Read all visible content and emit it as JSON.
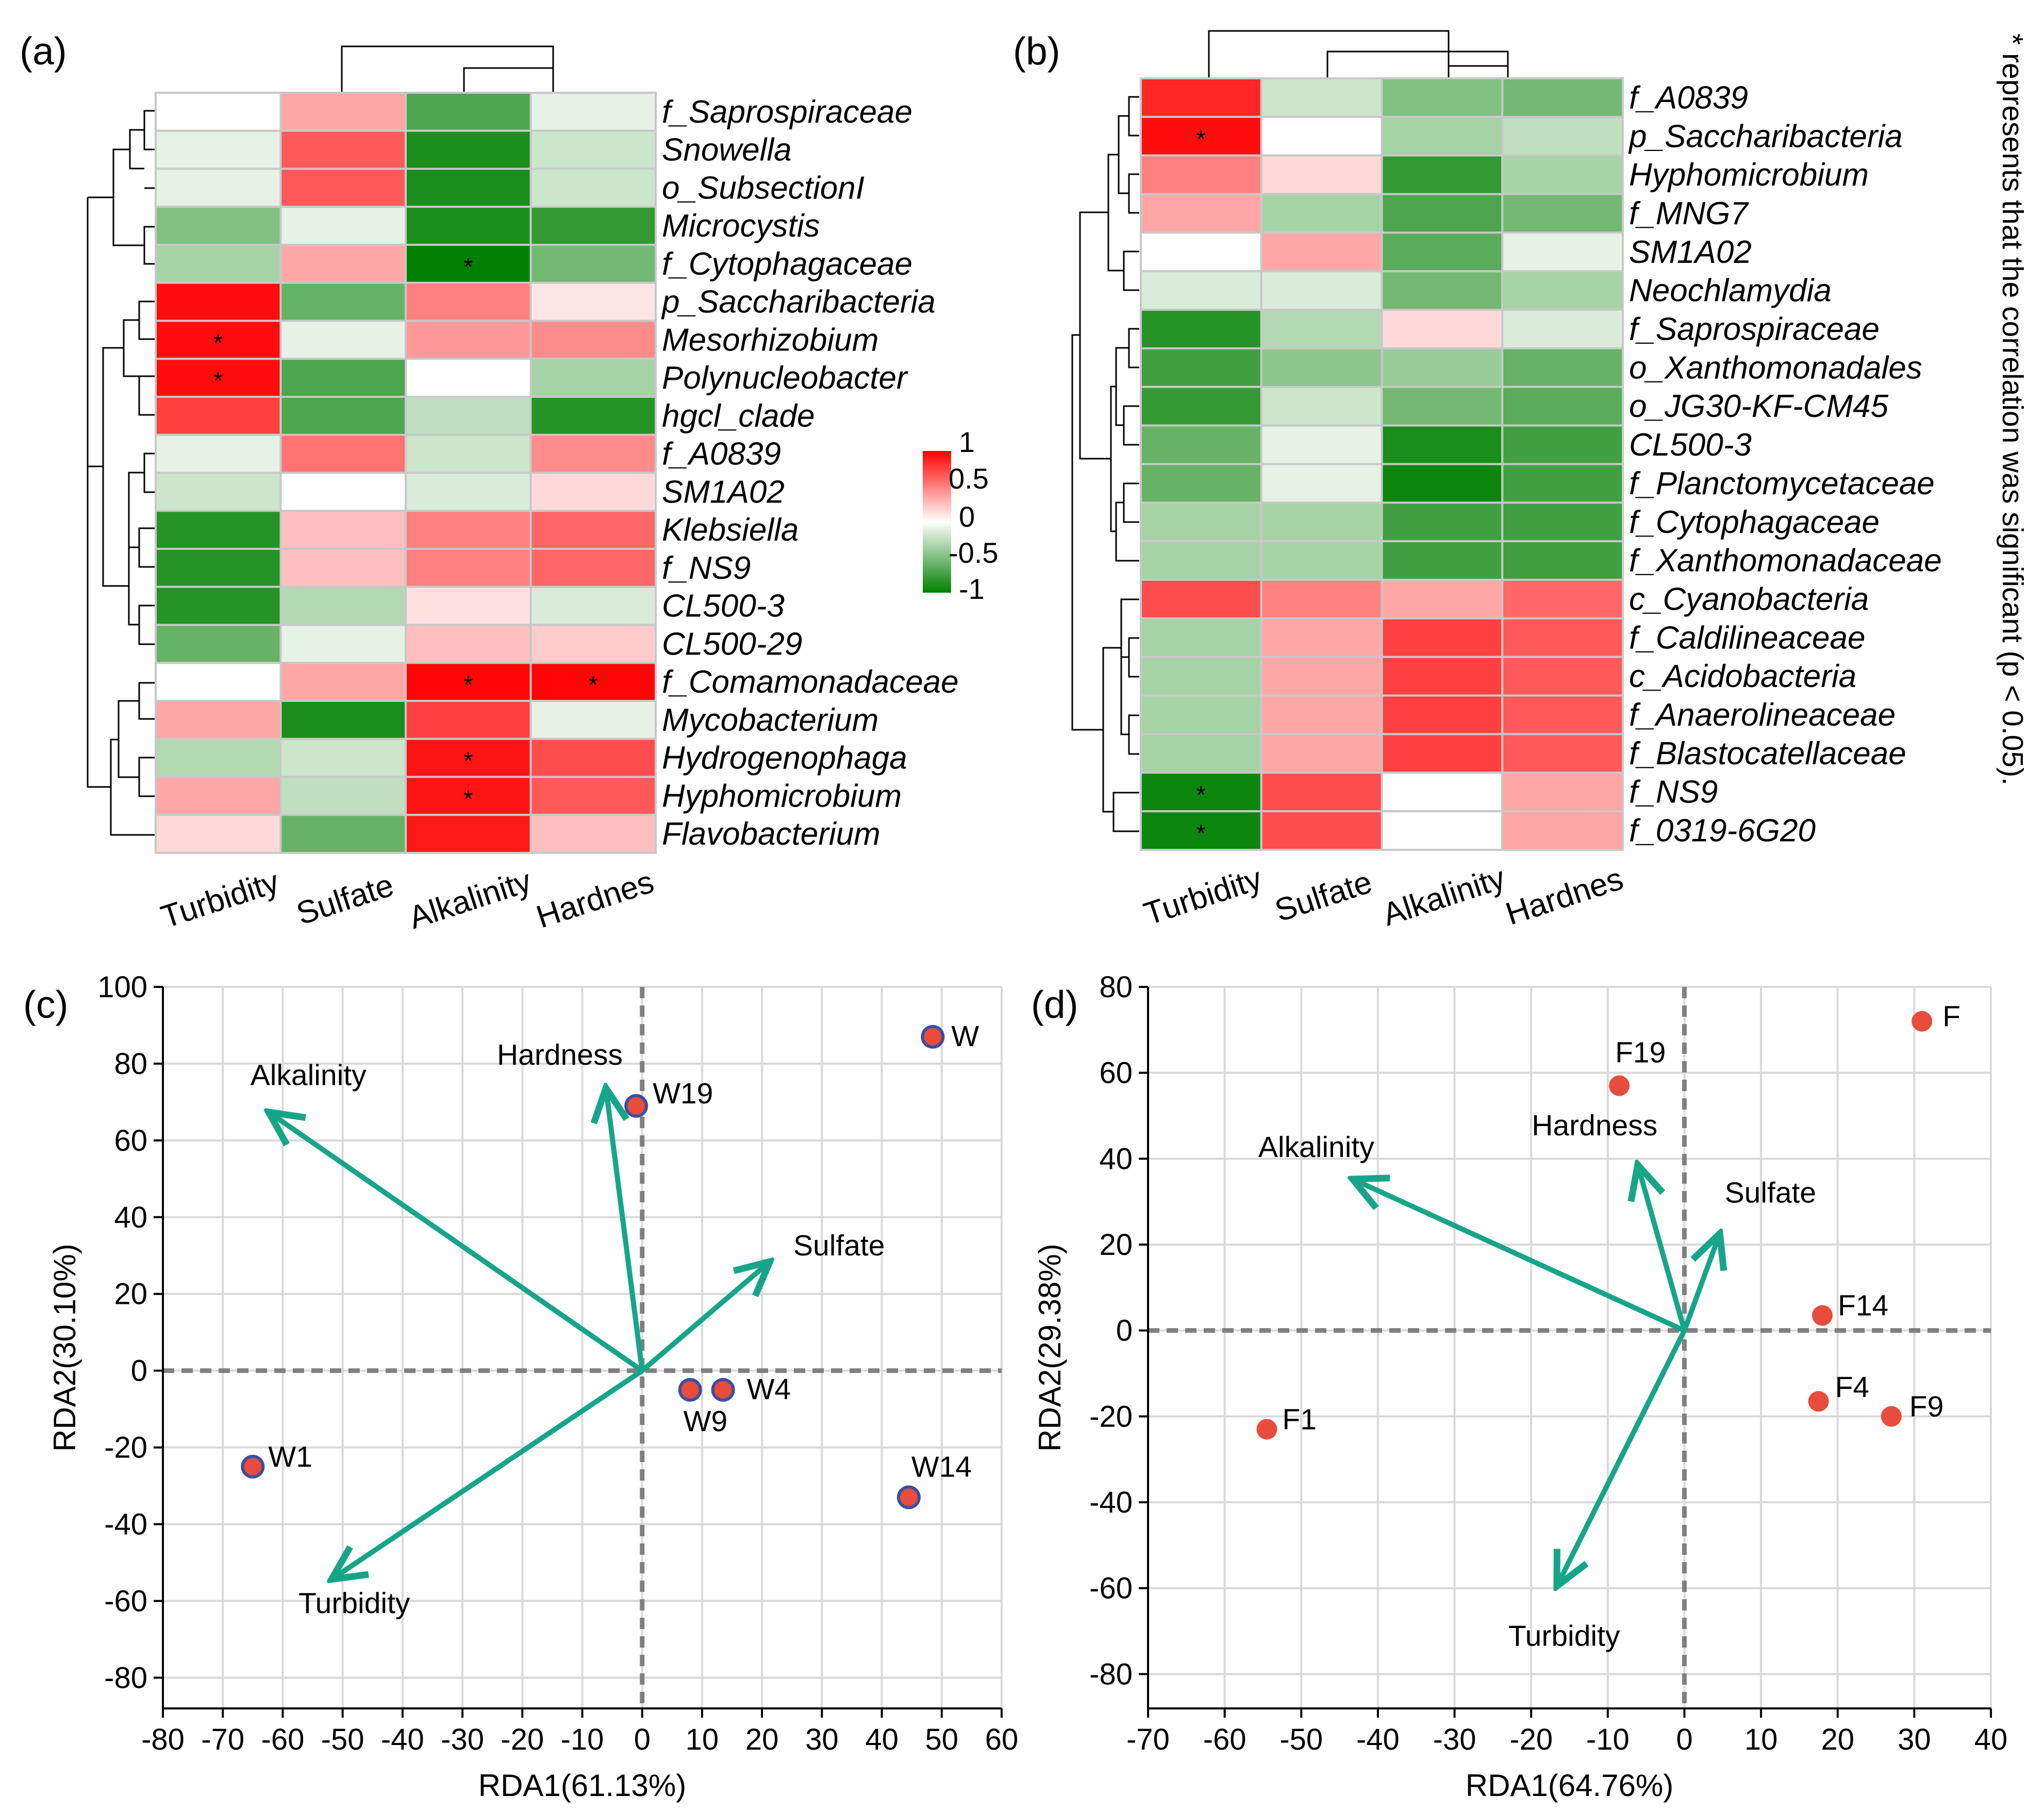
{
  "figure": {
    "panel_labels": [
      "(a)",
      "(b)",
      "(c)",
      "(d)"
    ],
    "significance_note": "* represents that the correlation was significant (p < 0.05).",
    "colorbar_ticks": [
      "1",
      "0.5",
      "0",
      "-0.5",
      "-1"
    ],
    "colors": {
      "positive": "#ff0000",
      "neutral": "#ffffff",
      "negative": "#008000",
      "arrow": "#17a589",
      "point": "#e74c3c",
      "point_edge_c": "#3b4fa0",
      "cross": "#808080"
    }
  },
  "chart_data": [
    {
      "type": "heatmap",
      "panel": "(a)",
      "columns": [
        "Turbidity",
        "Sulfate",
        "Alkalinity",
        "Hardnes"
      ],
      "rows": [
        "f_Saprospiraceae",
        "Snowella",
        "o_SubsectionI",
        "Microcystis",
        "f_Cytophagaceae",
        "p_Saccharibacteria",
        "Mesorhizobium",
        "Polynucleobacter",
        "hgcl_clade",
        "f_A0839",
        "SM1A02",
        "Klebsiella",
        "f_NS9",
        "CL500-3",
        "CL500-29",
        "f_Comamonadaceae",
        "Mycobacterium",
        "Hydrogenophaga",
        "Hyphomicrobium",
        "Flavobacterium"
      ],
      "values": [
        [
          0.0,
          0.35,
          -0.7,
          -0.1
        ],
        [
          -0.1,
          0.65,
          -0.9,
          -0.2
        ],
        [
          -0.1,
          0.65,
          -0.9,
          -0.2
        ],
        [
          -0.5,
          -0.1,
          -0.9,
          -0.8
        ],
        [
          -0.35,
          0.35,
          -1.0,
          -0.55
        ],
        [
          0.95,
          -0.6,
          0.5,
          0.1
        ],
        [
          0.95,
          -0.1,
          0.4,
          0.45
        ],
        [
          0.95,
          -0.7,
          0.0,
          -0.35
        ],
        [
          0.75,
          -0.7,
          -0.25,
          -0.85
        ],
        [
          -0.1,
          0.55,
          -0.2,
          0.45
        ],
        [
          -0.2,
          0.0,
          -0.15,
          0.15
        ],
        [
          -0.85,
          0.25,
          0.5,
          0.6
        ],
        [
          -0.85,
          0.25,
          0.5,
          0.6
        ],
        [
          -0.85,
          -0.3,
          0.12,
          -0.15
        ],
        [
          -0.6,
          -0.1,
          0.25,
          0.2
        ],
        [
          0.0,
          0.35,
          0.98,
          0.98
        ],
        [
          0.35,
          -0.9,
          0.75,
          -0.1
        ],
        [
          -0.3,
          -0.2,
          0.92,
          0.7
        ],
        [
          0.35,
          -0.25,
          0.92,
          0.65
        ],
        [
          0.15,
          -0.6,
          0.9,
          0.25
        ]
      ],
      "significant": [
        [
          4,
          2
        ],
        [
          6,
          0
        ],
        [
          7,
          0
        ],
        [
          15,
          2
        ],
        [
          15,
          3
        ],
        [
          17,
          2
        ],
        [
          18,
          2
        ]
      ],
      "colorbar_range": [
        -1,
        1
      ]
    },
    {
      "type": "heatmap",
      "panel": "(b)",
      "columns": [
        "Turbidity",
        "Sulfate",
        "Alkalinity",
        "Hardnes"
      ],
      "rows": [
        "f_A0839",
        "p_Saccharibacteria",
        "Hyphomicrobium",
        "f_MNG7",
        "SM1A02",
        "Neochlamydia",
        "f_Saprospiraceae",
        "o_Xanthomonadales",
        "o_JG30-KF-CM45",
        "CL500-3",
        "f_Planctomycetaceae",
        "f_Cytophagaceae",
        "f_Xanthomonadaceae",
        "c_Cyanobacteria",
        "f_Caldilineaceae",
        "c_Acidobacteria",
        "f_Anaerolineaceae",
        "f_Blastocatellaceae",
        "f_NS9",
        "f_0319-6G20"
      ],
      "values": [
        [
          0.85,
          -0.2,
          -0.5,
          -0.55
        ],
        [
          0.95,
          0.0,
          -0.35,
          -0.25
        ],
        [
          0.5,
          0.15,
          -0.8,
          -0.35
        ],
        [
          0.35,
          -0.35,
          -0.7,
          -0.55
        ],
        [
          0.0,
          0.35,
          -0.65,
          -0.1
        ],
        [
          -0.15,
          -0.15,
          -0.55,
          -0.35
        ],
        [
          -0.85,
          -0.3,
          0.15,
          -0.15
        ],
        [
          -0.75,
          -0.45,
          -0.4,
          -0.6
        ],
        [
          -0.8,
          -0.2,
          -0.55,
          -0.65
        ],
        [
          -0.6,
          -0.1,
          -0.9,
          -0.75
        ],
        [
          -0.6,
          -0.1,
          -0.95,
          -0.75
        ],
        [
          -0.35,
          -0.35,
          -0.75,
          -0.75
        ],
        [
          -0.35,
          -0.35,
          -0.75,
          -0.75
        ],
        [
          0.7,
          0.5,
          0.35,
          0.6
        ],
        [
          -0.35,
          0.35,
          0.75,
          0.65
        ],
        [
          -0.35,
          0.35,
          0.75,
          0.65
        ],
        [
          -0.35,
          0.35,
          0.75,
          0.65
        ],
        [
          -0.35,
          0.35,
          0.75,
          0.65
        ],
        [
          -0.95,
          0.7,
          0.0,
          0.35
        ],
        [
          -0.95,
          0.7,
          0.0,
          0.35
        ]
      ],
      "significant": [
        [
          1,
          0
        ],
        [
          18,
          0
        ],
        [
          19,
          0
        ]
      ]
    },
    {
      "type": "scatter",
      "panel": "(c)",
      "subtype": "RDA biplot",
      "xlabel": "RDA1(61.13%)",
      "ylabel": "RDA2(30.10%)",
      "xlim": [
        -80,
        60
      ],
      "ylim": [
        -88,
        100
      ],
      "xticks": [
        -80,
        -70,
        -60,
        -50,
        -40,
        -30,
        -20,
        -10,
        0,
        10,
        20,
        30,
        40,
        50,
        60
      ],
      "yticks": [
        -80,
        -60,
        -40,
        -20,
        0,
        20,
        40,
        60,
        80,
        100
      ],
      "points": [
        {
          "label": "W",
          "x": 48.5,
          "y": 87
        },
        {
          "label": "W19",
          "x": -1,
          "y": 69
        },
        {
          "label": "W9",
          "x": 8,
          "y": -5
        },
        {
          "label": "W4",
          "x": 13.5,
          "y": -5
        },
        {
          "label": "W1",
          "x": -65,
          "y": -25
        },
        {
          "label": "W14",
          "x": 44.5,
          "y": -33
        }
      ],
      "arrows": [
        {
          "label": "Alkalinity",
          "x": -62,
          "y": 67
        },
        {
          "label": "Hardness",
          "x": -6,
          "y": 73
        },
        {
          "label": "Sulfate",
          "x": 21,
          "y": 28
        },
        {
          "label": "Turbidity",
          "x": -51.5,
          "y": -54
        }
      ]
    },
    {
      "type": "scatter",
      "panel": "(d)",
      "subtype": "RDA biplot",
      "xlabel": "RDA1(64.76%)",
      "ylabel": "RDA2(29.38%)",
      "xlim": [
        -70,
        40
      ],
      "ylim": [
        -88,
        80
      ],
      "xticks": [
        -70,
        -60,
        -50,
        -40,
        -30,
        -20,
        -10,
        0,
        10,
        20,
        30,
        40
      ],
      "yticks": [
        -80,
        -60,
        -40,
        -20,
        0,
        20,
        40,
        60,
        80
      ],
      "points": [
        {
          "label": "F",
          "x": 31,
          "y": 72
        },
        {
          "label": "F19",
          "x": -8.5,
          "y": 57
        },
        {
          "label": "F14",
          "x": 18,
          "y": 3.5
        },
        {
          "label": "F4",
          "x": 17.5,
          "y": -16.5
        },
        {
          "label": "F9",
          "x": 27,
          "y": -20
        },
        {
          "label": "F1",
          "x": -54.5,
          "y": -23
        }
      ],
      "arrows": [
        {
          "label": "Alkalinity",
          "x": -43,
          "y": 35
        },
        {
          "label": "Hardness",
          "x": -6,
          "y": 38
        },
        {
          "label": "Sulfate",
          "x": 4.5,
          "y": 22
        },
        {
          "label": "Turbidity",
          "x": -16.5,
          "y": -59
        }
      ]
    }
  ]
}
